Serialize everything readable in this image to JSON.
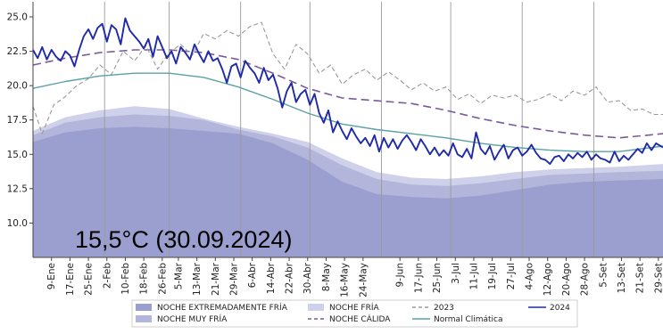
{
  "chart_data": {
    "type": "area",
    "title": "",
    "xlabel": "",
    "ylabel": "",
    "ylim": [
      7.5,
      26.1
    ],
    "xlim": [
      1,
      274
    ],
    "grid": "x-only",
    "annotation": "15,5°C (30.09.2024)",
    "y_ticks": [
      "10.0",
      "12.5",
      "15.0",
      "17.5",
      "20.0",
      "22.5",
      "25.0"
    ],
    "y_tick_values": [
      10.0,
      12.5,
      15.0,
      17.5,
      20.0,
      22.5,
      25.0
    ],
    "x_ticks": {
      "labels": [
        "9-Ene",
        "17-Ene",
        "25-Ene",
        "2-Feb",
        "10-Feb",
        "18-Feb",
        "26-Feb",
        "5-Mar",
        "13-Mar",
        "21-Mar",
        "29-Mar",
        "6-Abr",
        "14-Abr",
        "22-Abr",
        "30-Abr",
        "8-May",
        "16-May",
        "24-May",
        "9-Jun",
        "17-Jun",
        "25-Jun",
        "3-Jul",
        "11-Jul",
        "19-Jul",
        "27-Jul",
        "4-Ago",
        "12-Ago",
        "20-Ago",
        "28-Ago",
        "5-Set",
        "13-Set",
        "21-Set",
        "29-Set"
      ],
      "days": [
        9,
        17,
        25,
        33,
        41,
        49,
        57,
        64,
        72,
        80,
        88,
        96,
        104,
        112,
        120,
        128,
        136,
        144,
        160,
        168,
        176,
        184,
        192,
        200,
        208,
        216,
        224,
        232,
        240,
        248,
        256,
        264,
        272
      ]
    },
    "month_gridlines": [
      1,
      32,
      60,
      91,
      121,
      152,
      182,
      213,
      244
    ],
    "legend": {
      "placement": "bottom",
      "items": [
        {
          "label": "NOCHE EXTREMADAMENTE FRÍA",
          "kind": "patch",
          "color": "#9b9fcf"
        },
        {
          "label": "NOCHE MUY FRÍA",
          "kind": "patch",
          "color": "#b3b5da"
        },
        {
          "label": "NOCHE FRÍA",
          "kind": "patch",
          "color": "#cfd0ea"
        },
        {
          "label": "NOCHE CÁLIDA",
          "kind": "dashed",
          "color": "#7b5a9a"
        },
        {
          "label": "2023",
          "kind": "dashed",
          "color": "#9a9a9a"
        },
        {
          "label": "Normal Climática",
          "kind": "line",
          "color": "#5aa0a8"
        },
        {
          "label": "2024",
          "kind": "line",
          "color": "#1f2aa8"
        }
      ]
    },
    "colors": {
      "extremadamente_fria": "#9b9fcf",
      "muy_fria": "#b3b5da",
      "fria": "#cfd0ea",
      "calida": "#7b5a9a",
      "y2023": "#9a9a9a",
      "normal": "#5aa0a8",
      "y2024": "#1f2aa8",
      "grid": "#9a9a9a"
    },
    "bands": {
      "days": [
        1,
        15,
        30,
        45,
        60,
        75,
        90,
        105,
        120,
        135,
        150,
        165,
        180,
        195,
        210,
        225,
        240,
        255,
        274
      ],
      "extremadamente_fria_upper": [
        15.9,
        16.6,
        16.9,
        17.0,
        16.9,
        16.7,
        16.5,
        15.8,
        14.6,
        13.0,
        12.1,
        11.9,
        11.8,
        12.0,
        12.4,
        12.8,
        13.0,
        13.1,
        13.2
      ],
      "muy_fria_upper": [
        16.4,
        17.3,
        17.7,
        17.9,
        17.8,
        17.5,
        16.8,
        16.3,
        15.5,
        14.2,
        13.2,
        12.8,
        12.7,
        12.9,
        13.2,
        13.5,
        13.6,
        13.7,
        13.8
      ],
      "fria_upper": [
        16.7,
        17.7,
        18.2,
        18.5,
        18.3,
        17.6,
        17.0,
        16.5,
        15.9,
        14.7,
        13.7,
        13.3,
        13.2,
        13.4,
        13.7,
        13.9,
        14.0,
        14.1,
        14.3
      ]
    },
    "series": [
      {
        "name": "NOCHE CÁLIDA",
        "x": [
          1,
          15,
          30,
          45,
          60,
          75,
          90,
          105,
          120,
          135,
          150,
          165,
          180,
          195,
          210,
          225,
          240,
          255,
          274
        ],
        "values": [
          21.5,
          22.0,
          22.4,
          22.6,
          22.6,
          22.4,
          21.9,
          20.9,
          19.8,
          19.1,
          18.9,
          18.7,
          18.2,
          17.6,
          17.1,
          16.7,
          16.4,
          16.2,
          16.5
        ]
      },
      {
        "name": "Normal Climática",
        "x": [
          1,
          15,
          30,
          45,
          60,
          75,
          90,
          105,
          120,
          135,
          150,
          165,
          180,
          195,
          210,
          225,
          240,
          255,
          274
        ],
        "values": [
          19.8,
          20.3,
          20.7,
          20.9,
          20.9,
          20.6,
          19.9,
          19.0,
          18.0,
          17.2,
          16.8,
          16.5,
          16.2,
          15.8,
          15.5,
          15.3,
          15.2,
          15.2,
          15.6
        ]
      },
      {
        "name": "2023",
        "x": [
          1,
          5,
          10,
          15,
          20,
          25,
          30,
          35,
          40,
          45,
          50,
          55,
          60,
          65,
          70,
          75,
          80,
          85,
          90,
          95,
          100,
          105,
          110,
          115,
          120,
          125,
          130,
          135,
          140,
          145,
          150,
          155,
          160,
          165,
          170,
          175,
          180,
          185,
          190,
          195,
          200,
          205,
          210,
          215,
          220,
          225,
          230,
          235,
          240,
          245,
          250,
          255,
          260,
          265,
          270,
          274
        ],
        "values": [
          18.5,
          16.5,
          18.6,
          19.2,
          20.0,
          20.5,
          21.5,
          20.8,
          22.5,
          21.8,
          22.9,
          21.2,
          22.4,
          23.0,
          22.2,
          23.8,
          23.4,
          24.0,
          23.6,
          24.3,
          24.6,
          22.3,
          21.2,
          23.0,
          22.3,
          20.9,
          21.5,
          20.1,
          20.8,
          21.2,
          20.4,
          21.0,
          20.4,
          19.7,
          20.2,
          19.6,
          19.9,
          19.0,
          19.4,
          18.7,
          19.3,
          19.1,
          19.3,
          18.8,
          19.0,
          19.4,
          18.9,
          19.6,
          19.3,
          19.9,
          18.8,
          18.9,
          18.2,
          18.3,
          17.9,
          17.9
        ]
      },
      {
        "name": "2024",
        "x": [
          1,
          3,
          5,
          7,
          9,
          11,
          13,
          15,
          17,
          19,
          21,
          23,
          25,
          27,
          29,
          31,
          33,
          35,
          37,
          39,
          41,
          43,
          45,
          47,
          49,
          51,
          53,
          55,
          57,
          59,
          61,
          63,
          65,
          67,
          69,
          71,
          73,
          75,
          77,
          79,
          81,
          83,
          85,
          87,
          89,
          91,
          93,
          95,
          97,
          99,
          101,
          103,
          105,
          107,
          109,
          111,
          113,
          115,
          117,
          119,
          121,
          123,
          125,
          127,
          129,
          131,
          133,
          135,
          137,
          139,
          141,
          143,
          145,
          147,
          149,
          151,
          153,
          155,
          157,
          159,
          161,
          163,
          165,
          167,
          169,
          171,
          173,
          175,
          177,
          179,
          181,
          183,
          185,
          187,
          189,
          191,
          193,
          195,
          197,
          199,
          201,
          203,
          205,
          207,
          209,
          211,
          213,
          215,
          217,
          219,
          221,
          223,
          225,
          227,
          229,
          231,
          233,
          235,
          237,
          239,
          241,
          243,
          245,
          247,
          249,
          251,
          253,
          255,
          257,
          259,
          261,
          263,
          265,
          267,
          269,
          271,
          273,
          274
        ],
        "values": [
          22.6,
          22.0,
          22.8,
          21.9,
          22.6,
          22.1,
          21.8,
          22.5,
          22.2,
          21.4,
          22.6,
          23.6,
          24.1,
          23.4,
          24.2,
          24.5,
          23.2,
          24.4,
          24.1,
          23.0,
          24.9,
          24.0,
          23.6,
          23.2,
          22.7,
          23.4,
          22.1,
          23.6,
          22.8,
          22.0,
          22.5,
          21.6,
          22.8,
          22.4,
          21.9,
          23.0,
          22.3,
          21.7,
          22.5,
          21.8,
          22.0,
          21.2,
          20.2,
          21.4,
          21.6,
          20.6,
          21.8,
          21.3,
          20.9,
          20.2,
          21.3,
          20.4,
          20.8,
          19.8,
          18.4,
          19.6,
          20.2,
          18.8,
          19.4,
          19.7,
          18.6,
          19.4,
          18.0,
          17.3,
          18.2,
          16.6,
          17.4,
          16.7,
          16.1,
          16.9,
          16.3,
          15.8,
          16.2,
          15.6,
          16.4,
          15.2,
          16.2,
          15.5,
          16.1,
          15.4,
          16.0,
          16.4,
          15.9,
          15.3,
          16.1,
          15.6,
          15.0,
          15.5,
          14.9,
          15.3,
          14.9,
          15.8,
          15.0,
          14.8,
          15.4,
          14.7,
          16.6,
          15.4,
          15.0,
          15.6,
          14.6,
          15.2,
          15.7,
          14.7,
          15.3,
          15.5,
          14.9,
          15.2,
          15.7,
          15.1,
          14.7,
          14.6,
          14.3,
          14.8,
          14.9,
          14.5,
          15.0,
          14.7,
          15.1,
          14.8,
          15.2,
          14.6,
          15.0,
          14.7,
          14.6,
          14.4,
          15.2,
          14.5,
          14.9,
          14.6,
          15.0,
          15.4,
          15.1,
          15.8,
          15.3,
          15.8,
          15.6,
          15.5
        ]
      }
    ]
  }
}
